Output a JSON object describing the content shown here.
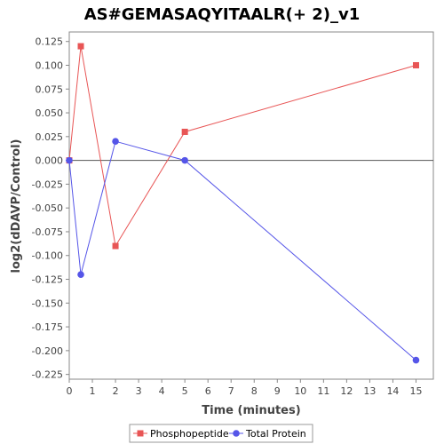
{
  "chart_data": {
    "type": "line",
    "title": "AS#GEMASAQYITAALR(+ 2)_v1",
    "xlabel": "Time (minutes)",
    "ylabel": "log2(dDAVP/Control)",
    "xlim": [
      0,
      15.75
    ],
    "ylim": [
      -0.23,
      0.135
    ],
    "x_ticks": [
      0,
      1,
      2,
      3,
      4,
      5,
      6,
      7,
      8,
      9,
      10,
      11,
      12,
      13,
      14,
      15
    ],
    "y_ticks": [
      0.125,
      0.1,
      0.075,
      0.05,
      0.025,
      0.0,
      -0.025,
      -0.05,
      -0.075,
      -0.1,
      -0.125,
      -0.15,
      -0.175,
      -0.2,
      -0.225
    ],
    "y_tick_labels": [
      "0.125",
      "0.100",
      "0.075",
      "0.050",
      "0.025",
      "0.000",
      "-0.025",
      "-0.050",
      "-0.075",
      "-0.100",
      "-0.125",
      "-0.150",
      "-0.175",
      "-0.200",
      "-0.225"
    ],
    "zero_line": true,
    "grid": false,
    "legend_position": "bottom",
    "series": [
      {
        "name": "Phosphopeptide",
        "color": "#e85555",
        "marker": "square",
        "x": [
          0,
          0.5,
          2,
          5,
          15
        ],
        "y": [
          0.0,
          0.12,
          -0.09,
          0.03,
          0.1
        ]
      },
      {
        "name": "Total Protein",
        "color": "#5555e8",
        "marker": "circle",
        "x": [
          0,
          0.5,
          2,
          5,
          15
        ],
        "y": [
          0.0,
          -0.12,
          0.02,
          0.0,
          -0.21
        ]
      }
    ]
  }
}
